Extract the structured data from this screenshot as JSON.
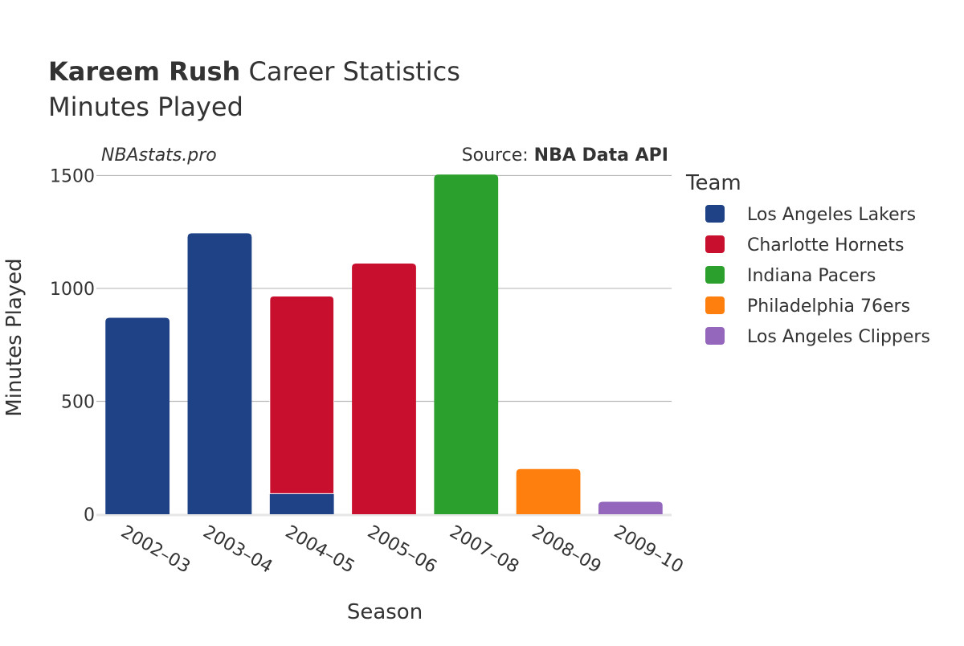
{
  "title": {
    "bold": "Kareem Rush",
    "rest": " Career Statistics",
    "subtitle": "Minutes Played"
  },
  "watermark": "NBAstats.pro",
  "source": {
    "prefix": "Source: ",
    "name": "NBA Data API"
  },
  "colors": {
    "text": "#333333",
    "grid": "#bbbbbb",
    "zeroline": "#e6e6e6",
    "background": "#ffffff"
  },
  "chart_data": {
    "type": "bar",
    "barmode": "stack",
    "title": "Kareem Rush Career Statistics",
    "subtitle": "Minutes Played",
    "xlabel": "Season",
    "ylabel": "Minutes Played",
    "categories": [
      "2002–03",
      "2003–04",
      "2004–05",
      "2005–06",
      "2007–08",
      "2008–09",
      "2009–10"
    ],
    "ylim": [
      0,
      1530
    ],
    "yticks": [
      0,
      500,
      1000,
      1500
    ],
    "grid": true,
    "legend_title": "Team",
    "legend_position": "right",
    "series": [
      {
        "name": "Los Angeles Lakers",
        "color": "#1f4287",
        "values": [
          870,
          1244,
          91,
          0,
          0,
          0,
          0
        ]
      },
      {
        "name": "Charlotte Hornets",
        "color": "#c8102e",
        "values": [
          0,
          0,
          875,
          1110,
          0,
          0,
          0
        ]
      },
      {
        "name": "Indiana Pacers",
        "color": "#2ca02c",
        "values": [
          0,
          0,
          0,
          0,
          1504,
          0,
          0
        ]
      },
      {
        "name": "Philadelphia 76ers",
        "color": "#ff7f0e",
        "values": [
          0,
          0,
          0,
          0,
          0,
          200,
          0
        ]
      },
      {
        "name": "Los Angeles Clippers",
        "color": "#9467bd",
        "values": [
          0,
          0,
          0,
          0,
          0,
          0,
          55
        ]
      }
    ]
  }
}
